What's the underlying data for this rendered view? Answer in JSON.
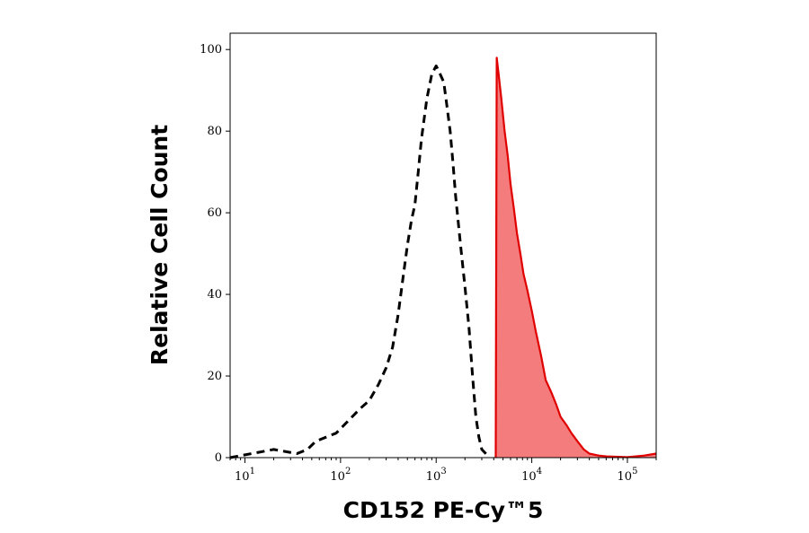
{
  "chart_data": {
    "type": "area",
    "title": "",
    "xlabel": "CD152 PE-Cy™5",
    "ylabel": "Relative Cell Count",
    "x_scale": "log",
    "xlim": [
      7,
      200000
    ],
    "ylim": [
      0,
      104
    ],
    "x_ticks": [
      {
        "value": 10,
        "base": "10",
        "exp": "1"
      },
      {
        "value": 100,
        "base": "10",
        "exp": "2"
      },
      {
        "value": 1000,
        "base": "10",
        "exp": "3"
      },
      {
        "value": 10000,
        "base": "10",
        "exp": "4"
      },
      {
        "value": 100000,
        "base": "10",
        "exp": "5"
      }
    ],
    "y_ticks": [
      "0",
      "20",
      "40",
      "60",
      "80",
      "100"
    ],
    "grid": false,
    "legend": "none",
    "colors": {
      "isotype_line": "#000000",
      "stained_line": "#e00000",
      "stained_fill": "#f47c7c",
      "axis": "#000000"
    },
    "series": [
      {
        "style": "dashed-unfilled",
        "x": [
          7,
          20,
          35,
          45,
          55,
          70,
          90,
          120,
          160,
          200,
          250,
          300,
          350,
          400,
          450,
          500,
          550,
          600,
          650,
          700,
          800,
          900,
          1000,
          1050,
          1100,
          1200,
          1300,
          1400,
          1500,
          1600,
          1800,
          2000,
          2200,
          2400,
          2600,
          2800,
          3000,
          3300,
          3600
        ],
        "values": [
          0,
          2,
          1,
          2,
          4,
          5,
          6,
          9,
          12,
          14,
          18,
          22,
          27,
          35,
          44,
          52,
          58,
          62,
          70,
          78,
          88,
          94,
          96,
          95,
          94,
          92,
          86,
          80,
          72,
          64,
          52,
          42,
          32,
          20,
          10,
          5,
          2,
          1,
          0
        ]
      },
      {
        "style": "solid-filled",
        "x": [
          4200,
          4300,
          4500,
          4800,
          5200,
          5600,
          6000,
          6500,
          7000,
          7600,
          8200,
          9000,
          10000,
          11000,
          12500,
          14000,
          16000,
          18000,
          20000,
          23000,
          26000,
          30000,
          35000,
          40000,
          50000,
          60000,
          80000,
          100000,
          150000,
          200000
        ],
        "values": [
          0,
          98,
          94,
          88,
          80,
          74,
          67,
          61,
          55,
          50,
          45,
          41,
          36,
          31,
          25,
          19,
          16,
          13,
          10,
          8,
          6,
          4,
          2,
          1,
          0.5,
          0.3,
          0.2,
          0.1,
          0.5,
          1
        ]
      }
    ]
  }
}
